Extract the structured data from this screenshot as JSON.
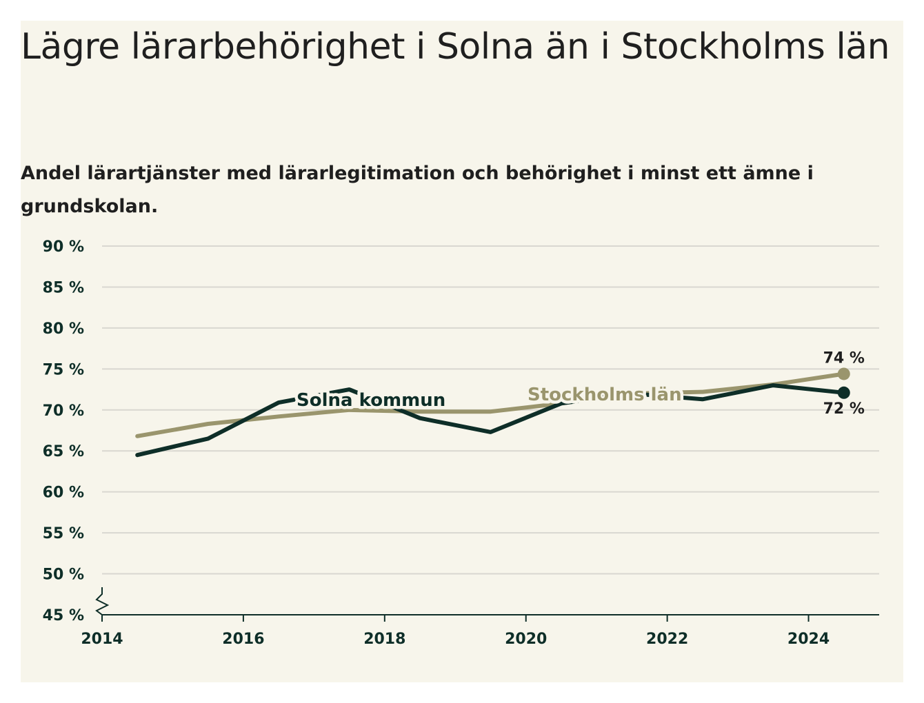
{
  "title": "Lägre lärarbehörighet i Solna än i Stockholms län",
  "subtitle": "Andel lärartjänster med lärarlegitimation och behörighet i minst ett ämne i grundskolan.",
  "colors": {
    "background": "#f7f5eb",
    "solna": "#0e2e28",
    "stockholm": "#9a956d",
    "grid": "#d9d7d0",
    "axis": "#0e2e28"
  },
  "chart_data": {
    "type": "line",
    "x": [
      2014.5,
      2015.5,
      2016.5,
      2017.5,
      2018.5,
      2019.5,
      2020.5,
      2021.5,
      2022.5,
      2023.5,
      2024.5
    ],
    "x_ticks": [
      2014,
      2016,
      2018,
      2020,
      2022,
      2024
    ],
    "x_tick_labels": [
      "2014",
      "2016",
      "2018",
      "2020",
      "2022",
      "2024"
    ],
    "xlim": [
      2014,
      2025
    ],
    "ylim": [
      45,
      90
    ],
    "y_ticks": [
      45,
      50,
      55,
      60,
      65,
      70,
      75,
      80,
      85,
      90
    ],
    "y_tick_labels": [
      "45 %",
      "50 %",
      "55 %",
      "60 %",
      "65 %",
      "70 %",
      "75 %",
      "80 %",
      "85 %",
      "90 %"
    ],
    "y_axis_break": true,
    "grid": true,
    "series": [
      {
        "name": "Solna kommun",
        "color": "#0e2e28",
        "values": [
          64.5,
          66.5,
          70.9,
          72.5,
          69.0,
          67.3,
          70.8,
          72.0,
          71.3,
          73.0,
          72.1
        ],
        "end_label": "72 %"
      },
      {
        "name": "Stockholms län",
        "color": "#9a956d",
        "values": [
          66.8,
          68.3,
          69.2,
          70.0,
          69.8,
          69.8,
          70.8,
          72.0,
          72.2,
          73.1,
          74.4
        ],
        "end_label": "74 %"
      }
    ]
  }
}
